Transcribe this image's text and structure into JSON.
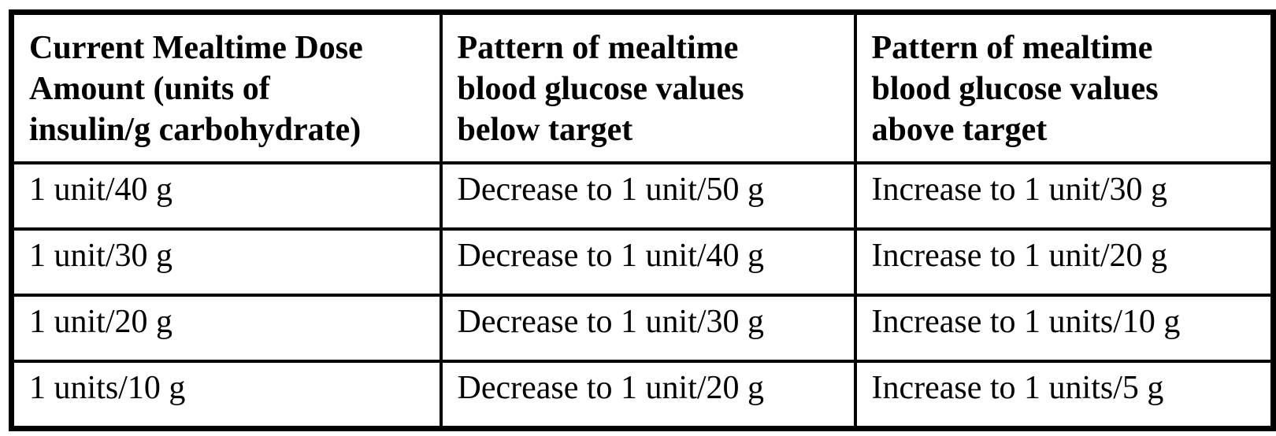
{
  "colors": {
    "border": "#000000",
    "text": "#000000",
    "background": "#ffffff"
  },
  "table": {
    "columns": [
      "Current Mealtime Dose\nAmount (units of\ninsulin/g carbohydrate)",
      "Pattern of mealtime\nblood glucose values\nbelow target",
      "Pattern of mealtime\nblood glucose values\nabove target"
    ],
    "rows": [
      [
        "1 unit/40 g",
        "Decrease to 1 unit/50 g",
        "Increase to 1 unit/30 g"
      ],
      [
        "1 unit/30 g",
        "Decrease to 1 unit/40 g",
        "Increase to 1 unit/20 g"
      ],
      [
        "1 unit/20 g",
        "Decrease to 1 unit/30 g",
        "Increase to 1 units/10 g"
      ],
      [
        "1 units/10 g",
        "Decrease to 1 unit/20 g",
        "Increase to 1 units/5 g"
      ]
    ]
  }
}
